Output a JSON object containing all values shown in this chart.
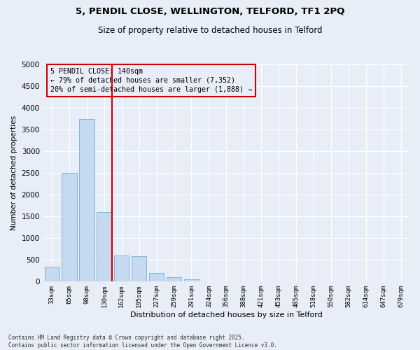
{
  "title1": "5, PENDIL CLOSE, WELLINGTON, TELFORD, TF1 2PQ",
  "title2": "Size of property relative to detached houses in Telford",
  "xlabel": "Distribution of detached houses by size in Telford",
  "ylabel": "Number of detached properties",
  "categories": [
    "33sqm",
    "65sqm",
    "98sqm",
    "130sqm",
    "162sqm",
    "195sqm",
    "227sqm",
    "259sqm",
    "291sqm",
    "324sqm",
    "356sqm",
    "388sqm",
    "421sqm",
    "453sqm",
    "485sqm",
    "518sqm",
    "550sqm",
    "582sqm",
    "614sqm",
    "647sqm",
    "679sqm"
  ],
  "values": [
    350,
    2500,
    3750,
    1600,
    600,
    580,
    200,
    100,
    60,
    0,
    0,
    0,
    0,
    0,
    0,
    0,
    0,
    0,
    0,
    0,
    0
  ],
  "bar_color": "#c5d9f0",
  "bar_edge_color": "#7aabcf",
  "vline_color": "#cc0000",
  "annotation_text": "5 PENDIL CLOSE: 140sqm\n← 79% of detached houses are smaller (7,352)\n20% of semi-detached houses are larger (1,888) →",
  "annotation_box_color": "#cc0000",
  "ylim": [
    0,
    5000
  ],
  "yticks": [
    0,
    500,
    1000,
    1500,
    2000,
    2500,
    3000,
    3500,
    4000,
    4500,
    5000
  ],
  "footer1": "Contains HM Land Registry data © Crown copyright and database right 2025.",
  "footer2": "Contains public sector information licensed under the Open Government Licence v3.0.",
  "bg_color": "#e8eef8",
  "grid_color": "#ffffff"
}
